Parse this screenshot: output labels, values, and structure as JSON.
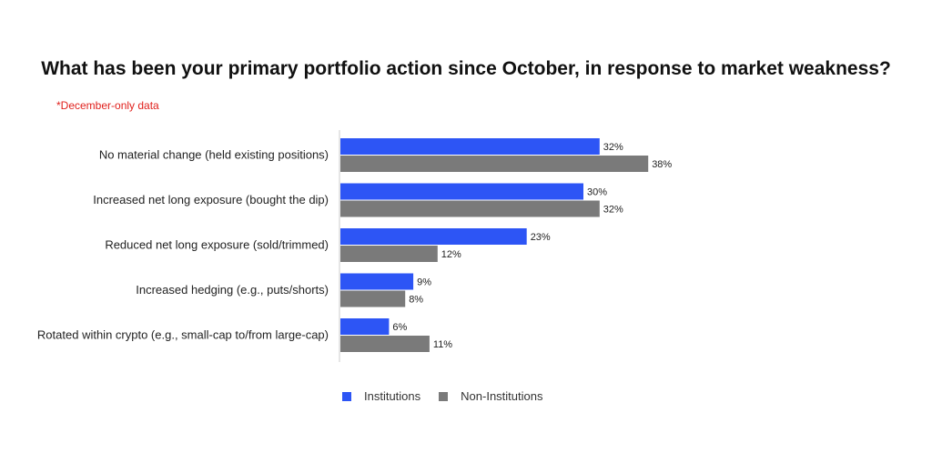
{
  "title": "What has been your primary portfolio action since October, in response to market weakness?",
  "note": "*December-only data",
  "colors": {
    "institutions": "#2d55f5",
    "non_institutions": "#7a7a7a"
  },
  "chart_data": {
    "type": "bar",
    "orientation": "horizontal",
    "title": "What has been your primary portfolio action since October, in response to market weakness?",
    "categories": [
      "No material change (held existing positions)",
      "Increased net long exposure (bought the dip)",
      "Reduced net long exposure (sold/trimmed)",
      "Increased hedging (e.g., puts/shorts)",
      "Rotated within crypto (e.g., small-cap to/from large-cap)"
    ],
    "series": [
      {
        "name": "Institutions",
        "values": [
          32,
          30,
          23,
          9,
          6
        ],
        "labels": [
          "32%",
          "30%",
          "23%",
          "9%",
          "6%"
        ]
      },
      {
        "name": "Non-Institutions",
        "values": [
          38,
          32,
          12,
          8,
          11
        ],
        "labels": [
          "38%",
          "32%",
          "12%",
          "8%",
          "11%"
        ]
      }
    ],
    "unit": "%",
    "xlim": [
      0,
      38
    ],
    "grid": false,
    "legend": "bottom"
  }
}
